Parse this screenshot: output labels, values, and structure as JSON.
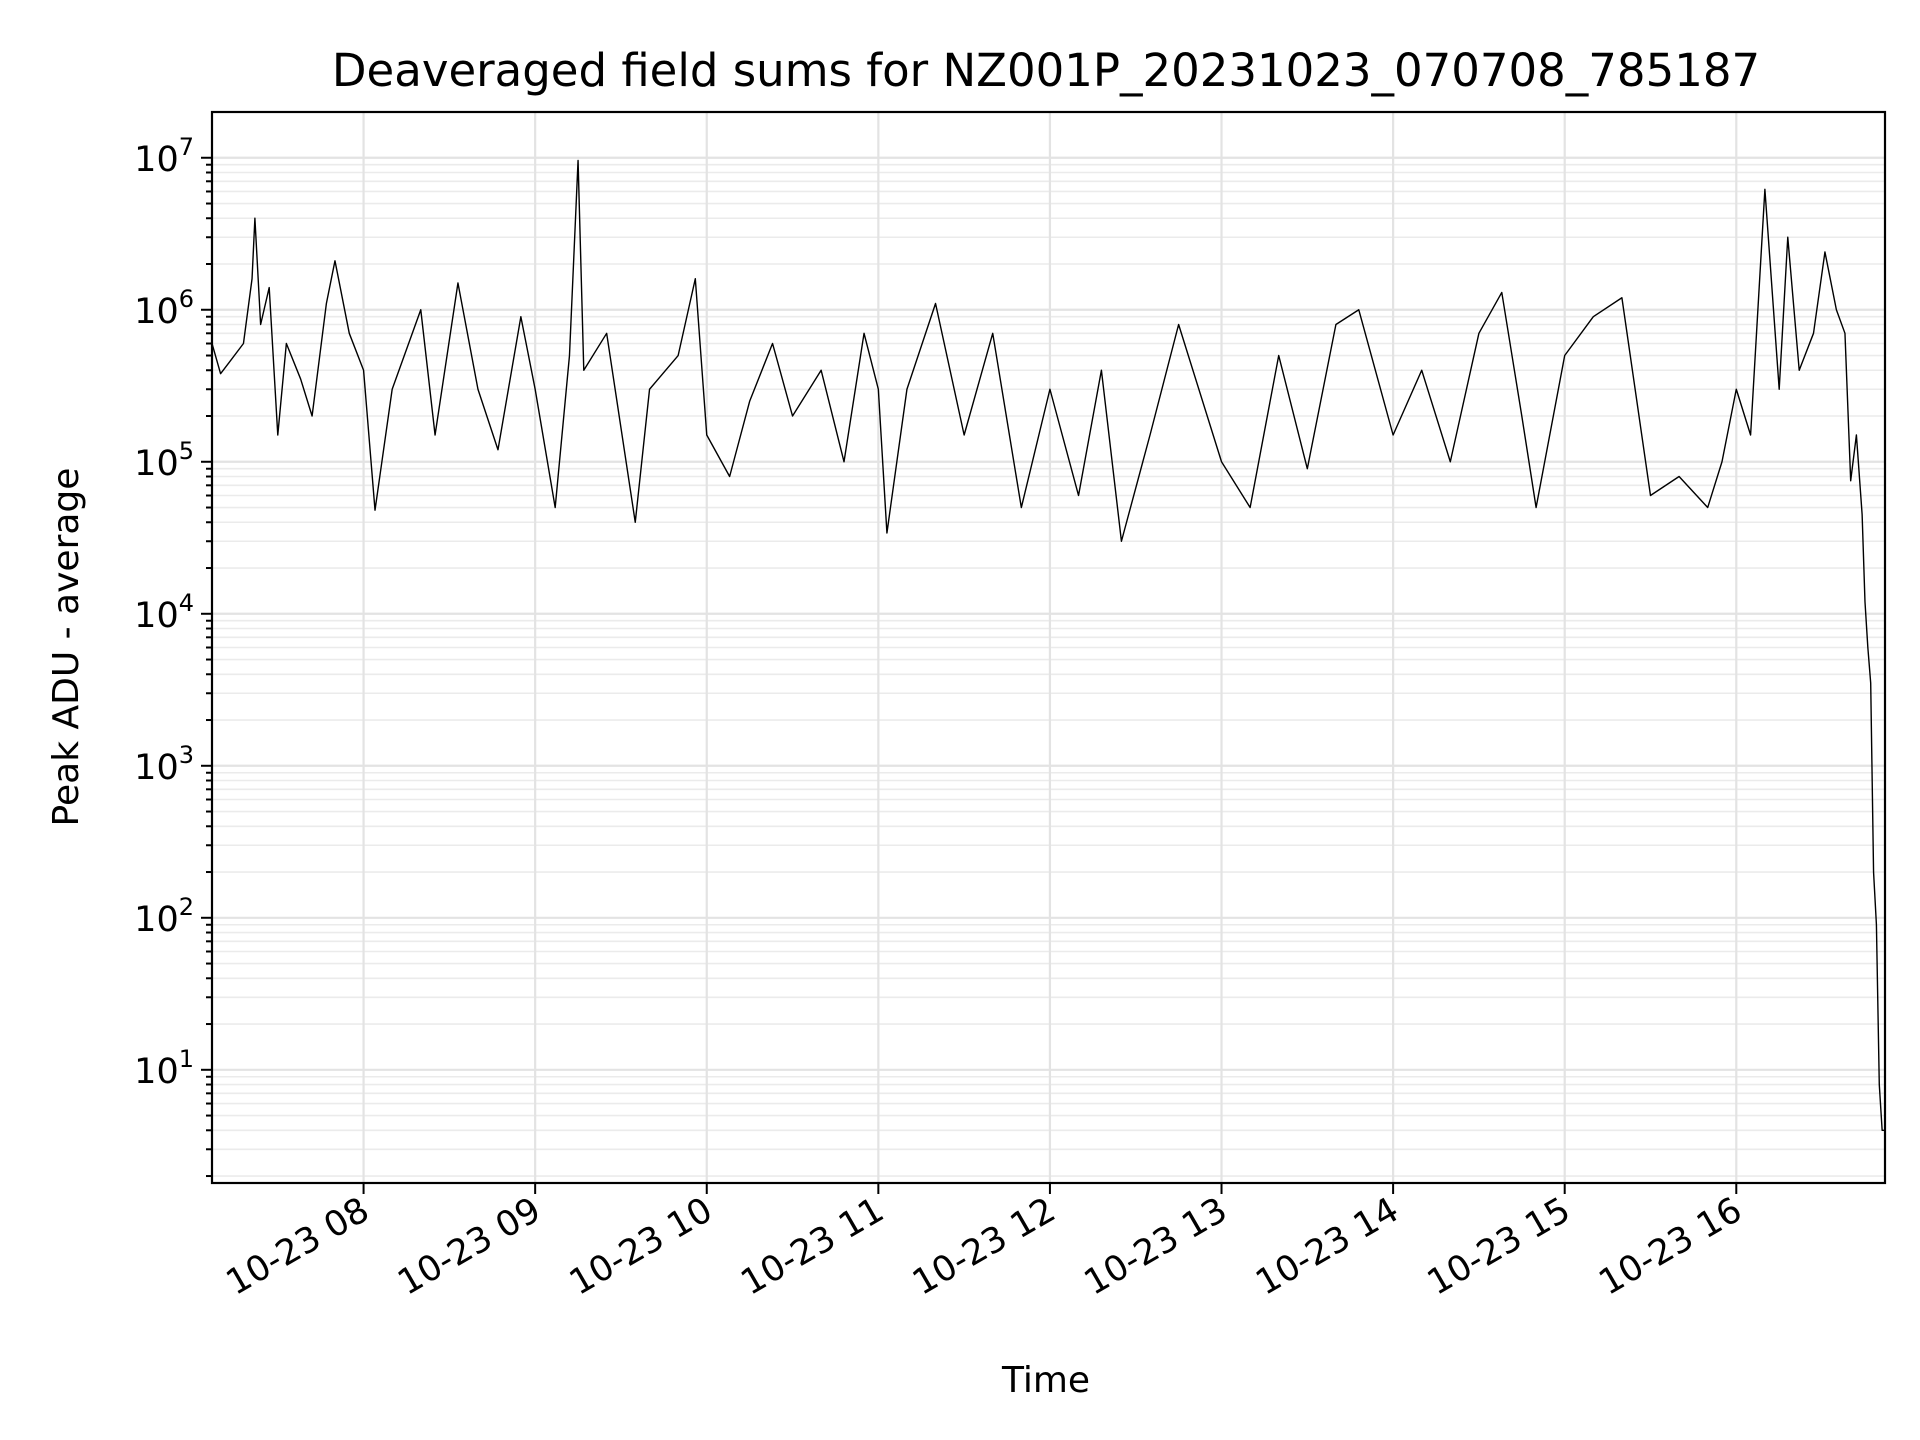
{
  "chart_data": {
    "type": "line",
    "title": "Deaveraged field sums for NZ001P_20231023_070708_785187",
    "xlabel": "Time",
    "ylabel": "Peak ADU - average",
    "yscale": "log",
    "grid": "on (major and minor)",
    "xlim": [
      "2023-10-23 07:07",
      "2023-10-23 16:52"
    ],
    "ylim": [
      1.8,
      20000000
    ],
    "x_ticks": [
      "10-23 08",
      "10-23 09",
      "10-23 10",
      "10-23 11",
      "10-23 12",
      "10-23 13",
      "10-23 14",
      "10-23 15",
      "10-23 16"
    ],
    "y_ticks": [
      {
        "base": "10",
        "exp": "1",
        "value": 10
      },
      {
        "base": "10",
        "exp": "2",
        "value": 100
      },
      {
        "base": "10",
        "exp": "3",
        "value": 1000
      },
      {
        "base": "10",
        "exp": "4",
        "value": 10000
      },
      {
        "base": "10",
        "exp": "5",
        "value": 100000
      },
      {
        "base": "10",
        "exp": "6",
        "value": 1000000
      },
      {
        "base": "10",
        "exp": "7",
        "value": 10000000
      }
    ],
    "series": [
      {
        "color": "#000000",
        "points": [
          [
            "2023-10-23 07:07",
            600000
          ],
          [
            "2023-10-23 07:10",
            380000
          ],
          [
            "2023-10-23 07:13",
            450000
          ],
          [
            "2023-10-23 07:18",
            600000
          ],
          [
            "2023-10-23 07:21",
            1600000
          ],
          [
            "2023-10-23 07:22",
            4000000
          ],
          [
            "2023-10-23 07:24",
            800000
          ],
          [
            "2023-10-23 07:27",
            1400000
          ],
          [
            "2023-10-23 07:30",
            150000
          ],
          [
            "2023-10-23 07:33",
            600000
          ],
          [
            "2023-10-23 07:38",
            350000
          ],
          [
            "2023-10-23 07:42",
            200000
          ],
          [
            "2023-10-23 07:47",
            1100000
          ],
          [
            "2023-10-23 07:50",
            2100000
          ],
          [
            "2023-10-23 07:55",
            700000
          ],
          [
            "2023-10-23 08:00",
            400000
          ],
          [
            "2023-10-23 08:04",
            48000
          ],
          [
            "2023-10-23 08:10",
            300000
          ],
          [
            "2023-10-23 08:20",
            1000000
          ],
          [
            "2023-10-23 08:25",
            150000
          ],
          [
            "2023-10-23 08:33",
            1500000
          ],
          [
            "2023-10-23 08:40",
            300000
          ],
          [
            "2023-10-23 08:47",
            120000
          ],
          [
            "2023-10-23 08:55",
            900000
          ],
          [
            "2023-10-23 09:00",
            300000
          ],
          [
            "2023-10-23 09:07",
            50000
          ],
          [
            "2023-10-23 09:12",
            500000
          ],
          [
            "2023-10-23 09:15",
            9600000
          ],
          [
            "2023-10-23 09:17",
            400000
          ],
          [
            "2023-10-23 09:25",
            700000
          ],
          [
            "2023-10-23 09:35",
            40000
          ],
          [
            "2023-10-23 09:40",
            300000
          ],
          [
            "2023-10-23 09:50",
            500000
          ],
          [
            "2023-10-23 09:56",
            1600000
          ],
          [
            "2023-10-23 10:00",
            150000
          ],
          [
            "2023-10-23 10:08",
            80000
          ],
          [
            "2023-10-23 10:15",
            250000
          ],
          [
            "2023-10-23 10:23",
            600000
          ],
          [
            "2023-10-23 10:30",
            200000
          ],
          [
            "2023-10-23 10:40",
            400000
          ],
          [
            "2023-10-23 10:48",
            100000
          ],
          [
            "2023-10-23 10:55",
            700000
          ],
          [
            "2023-10-23 11:00",
            300000
          ],
          [
            "2023-10-23 11:03",
            34000
          ],
          [
            "2023-10-23 11:10",
            300000
          ],
          [
            "2023-10-23 11:20",
            1100000
          ],
          [
            "2023-10-23 11:30",
            150000
          ],
          [
            "2023-10-23 11:40",
            700000
          ],
          [
            "2023-10-23 11:50",
            50000
          ],
          [
            "2023-10-23 12:00",
            300000
          ],
          [
            "2023-10-23 12:10",
            60000
          ],
          [
            "2023-10-23 12:18",
            400000
          ],
          [
            "2023-10-23 12:25",
            30000
          ],
          [
            "2023-10-23 12:35",
            150000
          ],
          [
            "2023-10-23 12:45",
            800000
          ],
          [
            "2023-10-23 13:00",
            100000
          ],
          [
            "2023-10-23 13:10",
            50000
          ],
          [
            "2023-10-23 13:20",
            500000
          ],
          [
            "2023-10-23 13:30",
            90000
          ],
          [
            "2023-10-23 13:40",
            800000
          ],
          [
            "2023-10-23 13:48",
            1000000
          ],
          [
            "2023-10-23 14:00",
            150000
          ],
          [
            "2023-10-23 14:10",
            400000
          ],
          [
            "2023-10-23 14:20",
            100000
          ],
          [
            "2023-10-23 14:30",
            700000
          ],
          [
            "2023-10-23 14:38",
            1300000
          ],
          [
            "2023-10-23 14:45",
            200000
          ],
          [
            "2023-10-23 14:50",
            50000
          ],
          [
            "2023-10-23 15:00",
            500000
          ],
          [
            "2023-10-23 15:10",
            900000
          ],
          [
            "2023-10-23 15:20",
            1200000
          ],
          [
            "2023-10-23 15:30",
            60000
          ],
          [
            "2023-10-23 15:40",
            80000
          ],
          [
            "2023-10-23 15:50",
            50000
          ],
          [
            "2023-10-23 15:55",
            100000
          ],
          [
            "2023-10-23 16:00",
            300000
          ],
          [
            "2023-10-23 16:05",
            150000
          ],
          [
            "2023-10-23 16:10",
            6200000
          ],
          [
            "2023-10-23 16:15",
            300000
          ],
          [
            "2023-10-23 16:18",
            3000000
          ],
          [
            "2023-10-23 16:22",
            400000
          ],
          [
            "2023-10-23 16:27",
            700000
          ],
          [
            "2023-10-23 16:31",
            2400000
          ],
          [
            "2023-10-23 16:35",
            1000000
          ],
          [
            "2023-10-23 16:38",
            700000
          ],
          [
            "2023-10-23 16:40",
            75000
          ],
          [
            "2023-10-23 16:42",
            150000
          ],
          [
            "2023-10-23 16:44",
            45000
          ],
          [
            "2023-10-23 16:45",
            12000
          ],
          [
            "2023-10-23 16:46",
            6000
          ],
          [
            "2023-10-23 16:47",
            3500
          ],
          [
            "2023-10-23 16:48",
            200
          ],
          [
            "2023-10-23 16:49",
            90
          ],
          [
            "2023-10-23 16:50",
            8
          ],
          [
            "2023-10-23 16:51",
            4
          ],
          [
            "2023-10-23 16:52",
            4
          ]
        ]
      }
    ]
  }
}
